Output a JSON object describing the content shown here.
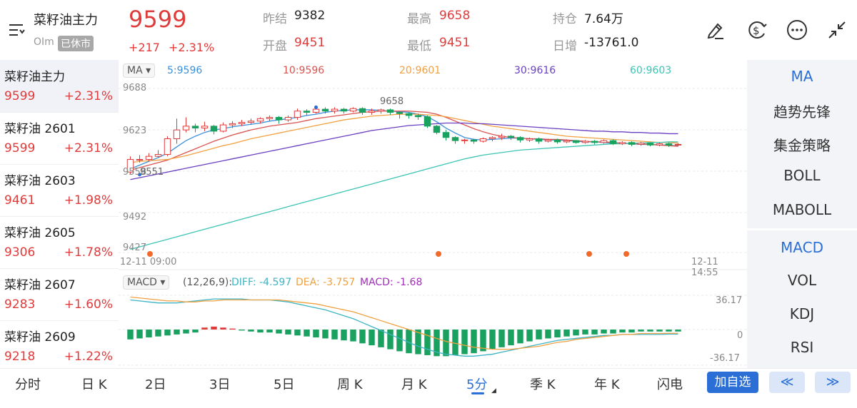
{
  "header": {
    "symbol_name": "菜籽油主力",
    "symbol_code": "OIm",
    "status_badge": "已休市",
    "last_price": "9599",
    "change": "+217",
    "change_pct": "+2.31%",
    "stats": {
      "prev_close": {
        "label": "昨结",
        "value": "9382"
      },
      "open": {
        "label": "开盘",
        "value": "9451"
      },
      "high": {
        "label": "最高",
        "value": "9658"
      },
      "low": {
        "label": "最低",
        "value": "9451"
      },
      "open_interest": {
        "label": "持仓",
        "value": "7.64万"
      },
      "daily_increase": {
        "label": "日增",
        "value": "-13761.0"
      }
    },
    "icons": [
      "menu-icon",
      "draw-pen-icon",
      "currency-icon",
      "more-icon",
      "collapse-icon"
    ]
  },
  "watchlist": [
    {
      "name": "菜籽油主力",
      "price": "9599",
      "pct": "+2.31%"
    },
    {
      "name": "菜籽油 2601",
      "price": "9599",
      "pct": "+2.31%"
    },
    {
      "name": "菜籽油 2603",
      "price": "9461",
      "pct": "+1.98%"
    },
    {
      "name": "菜籽油 2605",
      "price": "9306",
      "pct": "+1.78%"
    },
    {
      "name": "菜籽油 2607",
      "price": "9283",
      "pct": "+1.60%"
    },
    {
      "name": "菜籽油 2609",
      "price": "9218",
      "pct": "+1.22%"
    }
  ],
  "chart": {
    "ma_selector": "MA",
    "ma_labels": [
      {
        "text": "5:9596",
        "color": "#3b8fd9"
      },
      {
        "text": "10:9596",
        "color": "#d9534f"
      },
      {
        "text": "20:9601",
        "color": "#f0a040"
      },
      {
        "text": "30:9616",
        "color": "#6a3fc1"
      },
      {
        "text": "60:9603",
        "color": "#3cc4b4"
      }
    ],
    "y_ticks": [
      "9688",
      "9623",
      "9558",
      "9492",
      "9427"
    ],
    "high_marker": "9658",
    "low_marker": "9551",
    "time_start": "12-11 09:00",
    "time_end": "12-11 14:55",
    "macd_selector": "MACD",
    "macd_params": "(12,26,9):",
    "macd_diff": "DIFF: -4.597",
    "macd_dea": "DEA: -3.757",
    "macd_val": "MACD: -1.68",
    "macd_ticks": [
      "36.17",
      "0",
      "-36.17"
    ],
    "colors": {
      "up": "#e03b3b",
      "down": "#19a15f"
    }
  },
  "chart_data": {
    "type": "candlestick",
    "ylim": [
      9427,
      9688
    ],
    "candles": [
      [
        9555,
        9575,
        9551,
        9580
      ],
      [
        9575,
        9575,
        9570,
        9582
      ],
      [
        9575,
        9580,
        9572,
        9585
      ],
      [
        9580,
        9583,
        9578,
        9590
      ],
      [
        9583,
        9608,
        9580,
        9612
      ],
      [
        9608,
        9622,
        9600,
        9640
      ],
      [
        9622,
        9628,
        9618,
        9642
      ],
      [
        9628,
        9625,
        9618,
        9632
      ],
      [
        9625,
        9628,
        9620,
        9635
      ],
      [
        9628,
        9620,
        9615,
        9630
      ],
      [
        9620,
        9630,
        9618,
        9634
      ],
      [
        9630,
        9632,
        9625,
        9636
      ],
      [
        9632,
        9634,
        9628,
        9638
      ],
      [
        9634,
        9636,
        9630,
        9640
      ],
      [
        9636,
        9640,
        9632,
        9642
      ],
      [
        9640,
        9642,
        9636,
        9645
      ],
      [
        9642,
        9638,
        9632,
        9644
      ],
      [
        9638,
        9642,
        9635,
        9645
      ],
      [
        9642,
        9652,
        9638,
        9656
      ],
      [
        9652,
        9650,
        9645,
        9655
      ],
      [
        9650,
        9655,
        9648,
        9658
      ],
      [
        9655,
        9652,
        9648,
        9658
      ],
      [
        9652,
        9655,
        9648,
        9658
      ],
      [
        9655,
        9652,
        9648,
        9657
      ],
      [
        9652,
        9656,
        9650,
        9658
      ],
      [
        9656,
        9650,
        9646,
        9658
      ],
      [
        9650,
        9652,
        9646,
        9656
      ],
      [
        9652,
        9654,
        9648,
        9656
      ],
      [
        9654,
        9650,
        9646,
        9656
      ],
      [
        9650,
        9648,
        9640,
        9652
      ],
      [
        9648,
        9645,
        9640,
        9650
      ],
      [
        9645,
        9643,
        9638,
        9648
      ],
      [
        9643,
        9628,
        9625,
        9645
      ],
      [
        9628,
        9618,
        9615,
        9630
      ],
      [
        9618,
        9610,
        9605,
        9622
      ],
      [
        9610,
        9605,
        9600,
        9612
      ],
      [
        9605,
        9606,
        9600,
        9608
      ],
      [
        9606,
        9604,
        9600,
        9608
      ],
      [
        9604,
        9608,
        9602,
        9610
      ],
      [
        9608,
        9610,
        9604,
        9612
      ],
      [
        9610,
        9612,
        9606,
        9616
      ],
      [
        9612,
        9610,
        9606,
        9614
      ],
      [
        9610,
        9606,
        9602,
        9612
      ],
      [
        9606,
        9608,
        9603,
        9610
      ],
      [
        9608,
        9604,
        9600,
        9610
      ],
      [
        9604,
        9606,
        9602,
        9608
      ],
      [
        9606,
        9603,
        9600,
        9608
      ],
      [
        9603,
        9605,
        9601,
        9607
      ],
      [
        9605,
        9602,
        9600,
        9606
      ],
      [
        9602,
        9604,
        9600,
        9606
      ],
      [
        9604,
        9602,
        9599,
        9606
      ],
      [
        9602,
        9605,
        9600,
        9607
      ],
      [
        9605,
        9600,
        9598,
        9607
      ],
      [
        9600,
        9602,
        9598,
        9604
      ],
      [
        9602,
        9599,
        9596,
        9604
      ],
      [
        9599,
        9601,
        9597,
        9603
      ],
      [
        9601,
        9598,
        9596,
        9602
      ],
      [
        9598,
        9600,
        9596,
        9602
      ],
      [
        9600,
        9598,
        9595,
        9602
      ],
      [
        9598,
        9599,
        9596,
        9601
      ]
    ],
    "macd_hist": [
      -10,
      -9,
      -8,
      -7,
      -6,
      -5,
      -4,
      -3,
      2,
      3,
      2,
      1,
      -1,
      -2,
      -3,
      -3,
      -4,
      -5,
      -6,
      -7,
      -8,
      -9,
      -10,
      -11,
      -12,
      -14,
      -16,
      -18,
      -20,
      -22,
      -24,
      -25,
      -26,
      -27,
      -27,
      -26,
      -25,
      -24,
      -22,
      -20,
      -18,
      -16,
      -14,
      -12,
      -10,
      -9,
      -8,
      -7,
      -6,
      -5,
      -5,
      -4,
      -4,
      -3,
      -3,
      -2,
      -2,
      -2,
      -2,
      -2
    ],
    "macd_diff": [
      30,
      29,
      28,
      27,
      27,
      27,
      28,
      29,
      30,
      31,
      31,
      31,
      31,
      30,
      30,
      30,
      29,
      28,
      26,
      24,
      22,
      20,
      17,
      14,
      11,
      7,
      3,
      -1,
      -5,
      -9,
      -13,
      -17,
      -20,
      -23,
      -25,
      -26,
      -27,
      -27,
      -26,
      -25,
      -23,
      -21,
      -19,
      -17,
      -15,
      -13,
      -11,
      -10,
      -9,
      -8,
      -7,
      -6,
      -6,
      -5,
      -5,
      -5,
      -5,
      -5,
      -4.6,
      -4.6
    ],
    "macd_dea": [
      33,
      32,
      31,
      30,
      29,
      29,
      28,
      28,
      29,
      29,
      30,
      30,
      30,
      30,
      30,
      30,
      30,
      29,
      28,
      27,
      26,
      24,
      22,
      20,
      18,
      15,
      12,
      9,
      6,
      3,
      0,
      -3,
      -6,
      -9,
      -12,
      -14,
      -16,
      -18,
      -19,
      -20,
      -20,
      -20,
      -19,
      -18,
      -17,
      -15,
      -13,
      -12,
      -10,
      -9,
      -8,
      -7,
      -6,
      -5,
      -5,
      -4,
      -4,
      -4,
      -3.8,
      -3.8
    ],
    "ma_series": [
      {
        "name": "5",
        "color": "#3b8fd9",
        "values": [
          9560,
          9566,
          9572,
          9578,
          9585,
          9595,
          9605,
          9612,
          9618,
          9622,
          9624,
          9627,
          9629,
          9631,
          9633,
          9636,
          9638,
          9640,
          9642,
          9645,
          9647,
          9650,
          9652,
          9653,
          9654,
          9654,
          9654,
          9653,
          9652,
          9651,
          9650,
          9647,
          9643,
          9635,
          9625,
          9617,
          9610,
          9607,
          9606,
          9607,
          9608,
          9609,
          9609,
          9608,
          9607,
          9606,
          9606,
          9605,
          9604,
          9603,
          9603,
          9602,
          9601,
          9601,
          9600,
          9599,
          9599,
          9598,
          9598,
          9596
        ]
      },
      {
        "name": "10",
        "color": "#d9534f",
        "values": [
          9558,
          9562,
          9566,
          9570,
          9574,
          9580,
          9586,
          9592,
          9598,
          9604,
          9609,
          9614,
          9618,
          9622,
          9625,
          9628,
          9630,
          9632,
          9634,
          9637,
          9640,
          9642,
          9644,
          9646,
          9648,
          9650,
          9651,
          9652,
          9652,
          9652,
          9652,
          9651,
          9650,
          9647,
          9642,
          9636,
          9630,
          9624,
          9619,
          9615,
          9612,
          9610,
          9609,
          9608,
          9608,
          9607,
          9607,
          9606,
          9605,
          9604,
          9603,
          9603,
          9602,
          9601,
          9600,
          9600,
          9599,
          9598,
          9597,
          9596
        ]
      },
      {
        "name": "20",
        "color": "#f0a040",
        "values": [
          9570,
          9572,
          9573,
          9574,
          9575,
          9578,
          9581,
          9585,
          9589,
          9593,
          9597,
          9600,
          9604,
          9608,
          9611,
          9614,
          9617,
          9620,
          9623,
          9626,
          9629,
          9632,
          9635,
          9638,
          9640,
          9642,
          9644,
          9645,
          9646,
          9647,
          9647,
          9647,
          9646,
          9645,
          9643,
          9640,
          9637,
          9634,
          9631,
          9628,
          9626,
          9624,
          9622,
          9620,
          9618,
          9616,
          9614,
          9612,
          9611,
          9610,
          9609,
          9608,
          9607,
          9606,
          9605,
          9604,
          9603,
          9602,
          9602,
          9601
        ]
      },
      {
        "name": "30",
        "color": "#6a3fc1",
        "values": [
          9543,
          9546,
          9549,
          9552,
          9555,
          9558,
          9561,
          9564,
          9567,
          9570,
          9573,
          9576,
          9579,
          9582,
          9585,
          9588,
          9591,
          9594,
          9597,
          9600,
          9603,
          9606,
          9609,
          9612,
          9615,
          9618,
          9621,
          9623,
          9625,
          9627,
          9629,
          9630,
          9631,
          9632,
          9633,
          9633,
          9633,
          9632,
          9632,
          9631,
          9630,
          9629,
          9628,
          9627,
          9626,
          9625,
          9624,
          9623,
          9622,
          9621,
          9620,
          9620,
          9619,
          9619,
          9618,
          9618,
          9617,
          9617,
          9616,
          9616
        ]
      },
      {
        "name": "60",
        "color": "#3cc4b4",
        "values": [
          9432,
          9436,
          9440,
          9444,
          9448,
          9452,
          9456,
          9460,
          9464,
          9468,
          9472,
          9476,
          9480,
          9484,
          9488,
          9492,
          9496,
          9500,
          9504,
          9508,
          9512,
          9516,
          9520,
          9524,
          9528,
          9532,
          9536,
          9540,
          9544,
          9548,
          9552,
          9556,
          9560,
          9564,
          9568,
          9572,
          9576,
          9579,
          9582,
          9584,
          9586,
          9588,
          9590,
          9591,
          9592,
          9593,
          9594,
          9595,
          9596,
          9597,
          9598,
          9599,
          9600,
          9600,
          9601,
          9601,
          9602,
          9602,
          9603,
          9603
        ]
      }
    ]
  },
  "indicators": {
    "main": [
      "MA",
      "趋势先锋",
      "集金策略",
      "BOLL",
      "MABOLL"
    ],
    "sub": [
      "MACD",
      "VOL",
      "KDJ",
      "RSI"
    ],
    "active_main": "MA",
    "active_sub": "MACD"
  },
  "tabs": {
    "items": [
      "分时",
      "日 K",
      "2日",
      "3日",
      "5日",
      "周 K",
      "月 K",
      "5分",
      "季 K",
      "年 K",
      "闪电"
    ],
    "active": "5分",
    "add_watch": "加自选",
    "prev": "≪",
    "next": "≫"
  }
}
